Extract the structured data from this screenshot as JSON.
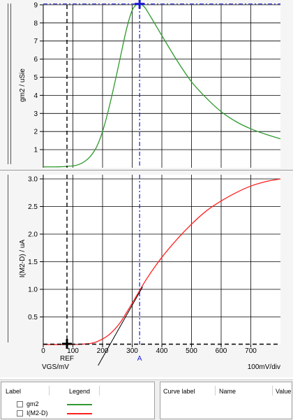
{
  "colors": {
    "gm2": "#2e9a2e",
    "i_m2d": "#ff2020",
    "cursor_a": "#1818d8",
    "ref": "#000000",
    "grid": "#000000"
  },
  "plot": {
    "x_axis_label": "VGS/mV",
    "x_scale_label": "100mV/div",
    "cursor_ref_label": "REF",
    "cursor_a_label": "A"
  },
  "chart_data": [
    {
      "type": "line",
      "title": "",
      "ylabel": "gm2 / uSie",
      "xlabel": "VGS/mV",
      "xlim": [
        0,
        800
      ],
      "ylim": [
        0,
        9
      ],
      "x_ticks": [],
      "y_ticks": [
        "1",
        "2",
        "3",
        "4",
        "5",
        "6",
        "7",
        "8",
        "9"
      ],
      "grid": true,
      "series": [
        {
          "name": "gm2",
          "x": [
            0,
            50,
            100,
            120,
            140,
            160,
            180,
            200,
            220,
            240,
            260,
            280,
            300,
            320,
            340,
            360,
            400,
            450,
            500,
            550,
            600,
            650,
            700,
            750,
            800
          ],
          "y": [
            0.05,
            0.05,
            0.1,
            0.18,
            0.35,
            0.65,
            1.15,
            2.0,
            3.2,
            4.6,
            6.1,
            7.6,
            8.7,
            9.05,
            8.9,
            8.4,
            7.3,
            5.95,
            4.75,
            3.85,
            3.1,
            2.55,
            2.15,
            1.85,
            1.6
          ]
        }
      ],
      "cursors": [
        {
          "name": "REF",
          "x": 80,
          "y": 9.05
        },
        {
          "name": "A",
          "x": 325,
          "y": 9.05
        }
      ]
    },
    {
      "type": "line",
      "title": "",
      "ylabel": "I(M2-D) / uA",
      "xlabel": "VGS/mV",
      "xlim": [
        0,
        800
      ],
      "ylim": [
        0,
        3
      ],
      "x_ticks": [
        "0",
        "100",
        "200",
        "300",
        "400",
        "500",
        "600",
        "700"
      ],
      "y_ticks": [
        "0.5",
        "1.0",
        "1.5",
        "2.0",
        "2.5",
        "3.0"
      ],
      "grid": true,
      "series": [
        {
          "name": "I(M2-D)",
          "x": [
            0,
            100,
            140,
            160,
            180,
            200,
            220,
            240,
            260,
            280,
            300,
            320,
            350,
            400,
            450,
            500,
            550,
            600,
            650,
            700,
            750,
            800
          ],
          "y": [
            0.0,
            0.0,
            0.01,
            0.02,
            0.05,
            0.1,
            0.17,
            0.27,
            0.4,
            0.57,
            0.75,
            0.93,
            1.2,
            1.58,
            1.9,
            2.18,
            2.42,
            2.6,
            2.75,
            2.87,
            2.95,
            3.0
          ]
        }
      ],
      "cursors": [
        {
          "name": "REF",
          "x": 80,
          "y": 0.0
        },
        {
          "name": "A",
          "x": 325,
          "y": 0.95
        }
      ]
    }
  ],
  "legend_panel": {
    "headers": [
      "Label",
      "Legend"
    ],
    "rows": [
      {
        "label": "gm2",
        "color": "#2e9a2e"
      },
      {
        "label": "I(M2-D)",
        "color": "#ff2020"
      }
    ]
  },
  "cursor_panel": {
    "headers": [
      "Curve label",
      "Name",
      "Value"
    ]
  }
}
